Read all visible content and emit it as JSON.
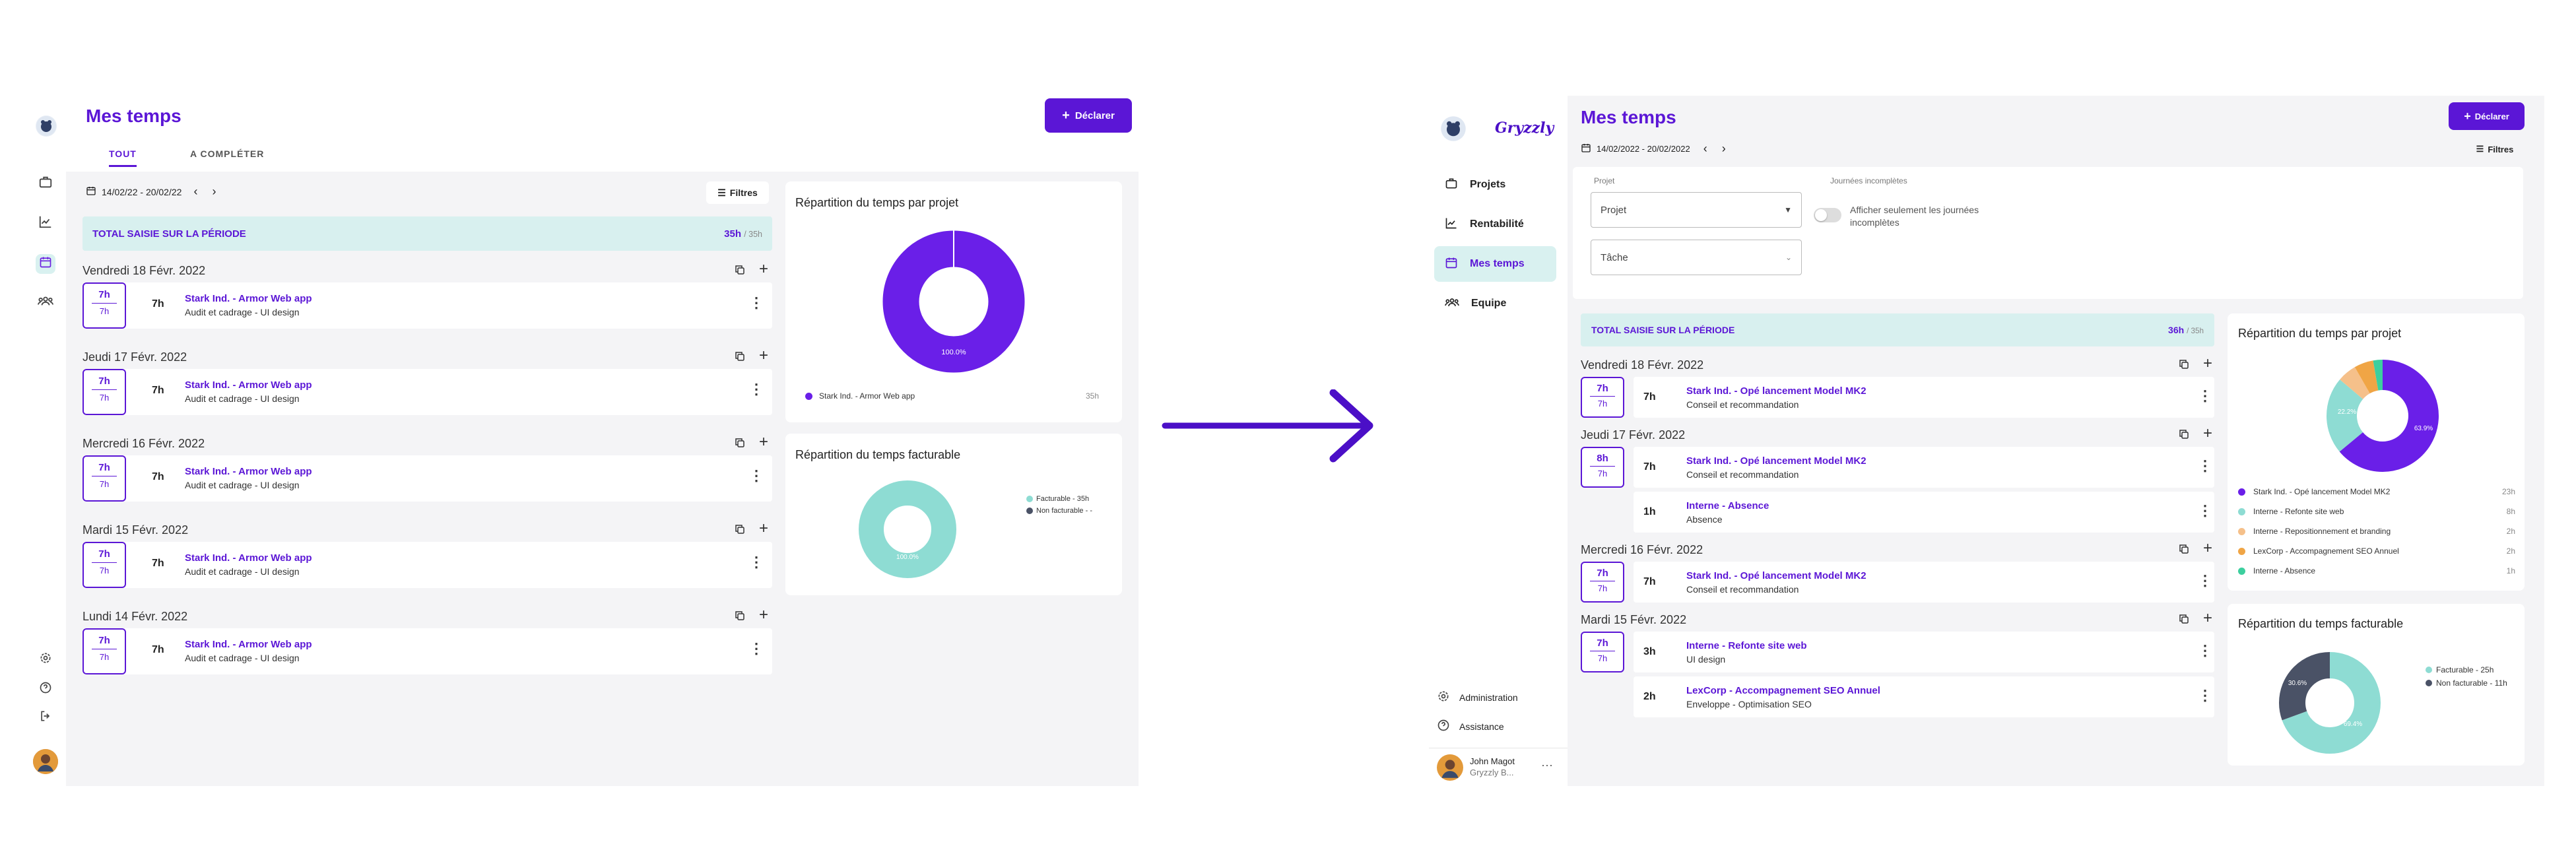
{
  "left": {
    "title": "Mes temps",
    "declare_label": "Déclarer",
    "tabs": [
      "TOUT",
      "A COMPLÉTER"
    ],
    "date_range": "14/02/22 - 20/02/22",
    "filters_label": "Filtres",
    "total_label": "TOTAL SAISIE SUR LA PÉRIODE",
    "total_value": "35h",
    "total_max": "/ 35h",
    "days": [
      {
        "label": "Vendredi 18 Févr. 2022",
        "box_top": "7h",
        "box_bot": "7h",
        "dur": "7h",
        "project": "Stark Ind. - Armor Web app",
        "task": "Audit et cadrage - UI design"
      },
      {
        "label": "Jeudi 17 Févr. 2022",
        "box_top": "7h",
        "box_bot": "7h",
        "dur": "7h",
        "project": "Stark Ind. - Armor Web app",
        "task": "Audit et cadrage - UI design"
      },
      {
        "label": "Mercredi 16 Févr. 2022",
        "box_top": "7h",
        "box_bot": "7h",
        "dur": "7h",
        "project": "Stark Ind. - Armor Web app",
        "task": "Audit et cadrage - UI design"
      },
      {
        "label": "Mardi 15 Févr. 2022",
        "box_top": "7h",
        "box_bot": "7h",
        "dur": "7h",
        "project": "Stark Ind. - Armor Web app",
        "task": "Audit et cadrage - UI design"
      },
      {
        "label": "Lundi 14 Févr. 2022",
        "box_top": "7h",
        "box_bot": "7h",
        "dur": "7h",
        "project": "Stark Ind. - Armor Web app",
        "task": "Audit et cadrage - UI design"
      }
    ],
    "chart_project": {
      "title": "Répartition du temps par projet",
      "slice_label": "100.0%",
      "legend": [
        {
          "name": "Stark Ind. - Armor Web app",
          "value": "35h",
          "color": "#6a1fe8"
        }
      ]
    },
    "chart_billable": {
      "title": "Répartition du temps facturable",
      "slice_label": "100.0%",
      "legend": [
        {
          "name": "Facturable - 35h",
          "color": "#8edcd3"
        },
        {
          "name": "Non facturable - -",
          "color": "#4a5266"
        }
      ]
    }
  },
  "right": {
    "brand": "Gryzzly",
    "title": "Mes temps",
    "declare_label": "Déclarer",
    "date_range": "14/02/2022 - 20/02/2022",
    "filters_label": "Filtres",
    "nav": [
      "Projets",
      "Rentabilité",
      "Mes temps",
      "Equipe"
    ],
    "bottom_nav": [
      "Administration",
      "Assistance"
    ],
    "user_name": "John Magot",
    "user_org": "Gryzzly B...",
    "filter_projet_label": "Projet",
    "filter_projet_value": "Projet",
    "filter_tache_value": "Tâche",
    "filter_incomplete_label": "Journées incomplètes",
    "toggle_text_1": "Afficher seulement les journées",
    "toggle_text_2": "incomplètes",
    "total_label": "TOTAL SAISIE SUR LA PÉRIODE",
    "total_value": "36h",
    "total_max": "/ 35h",
    "days": [
      {
        "label": "Vendredi 18 Févr. 2022",
        "box_top": "7h",
        "box_bot": "7h",
        "entries": [
          {
            "dur": "7h",
            "project": "Stark Ind. - Opé lancement Model MK2",
            "task": "Conseil et recommandation"
          }
        ]
      },
      {
        "label": "Jeudi 17 Févr. 2022",
        "box_top": "8h",
        "box_bot": "7h",
        "entries": [
          {
            "dur": "7h",
            "project": "Stark Ind. - Opé lancement Model MK2",
            "task": "Conseil et recommandation"
          },
          {
            "dur": "1h",
            "project": "Interne - Absence",
            "task": "Absence"
          }
        ]
      },
      {
        "label": "Mercredi 16 Févr. 2022",
        "box_top": "7h",
        "box_bot": "7h",
        "entries": [
          {
            "dur": "7h",
            "project": "Stark Ind. - Opé lancement Model MK2",
            "task": "Conseil et recommandation"
          }
        ]
      },
      {
        "label": "Mardi 15 Févr. 2022",
        "box_top": "7h",
        "box_bot": "7h",
        "entries": [
          {
            "dur": "3h",
            "project": "Interne - Refonte site web",
            "task": "UI design"
          },
          {
            "dur": "2h",
            "project": "LexCorp - Accompagnement SEO Annuel",
            "task": "Enveloppe - Optimisation SEO"
          }
        ]
      }
    ],
    "chart_project": {
      "title": "Répartition du temps par projet",
      "big_label": "63.9%",
      "small_label": "22.2%",
      "legend": [
        {
          "name": "Stark Ind. - Opé lancement Model MK2",
          "value": "23h",
          "color": "#6a1fe8"
        },
        {
          "name": "Interne - Refonte site web",
          "value": "8h",
          "color": "#8edcd3"
        },
        {
          "name": "Interne - Repositionnement et branding",
          "value": "2h",
          "color": "#f5c08a"
        },
        {
          "name": "LexCorp - Accompagnement SEO Annuel",
          "value": "2h",
          "color": "#f0a545"
        },
        {
          "name": "Interne - Absence",
          "value": "1h",
          "color": "#3ccf9e"
        }
      ]
    },
    "chart_billable": {
      "title": "Répartition du temps facturable",
      "big_label": "69.4%",
      "small_label": "30.6%",
      "legend": [
        {
          "name": "Facturable - 25h",
          "color": "#8edcd3"
        },
        {
          "name": "Non facturable - 11h",
          "color": "#4a5266"
        }
      ]
    }
  },
  "colors": {
    "accent": "#5b16d6",
    "teal_bg": "#d8f0ef",
    "teal": "#8edcd3",
    "dark_slate": "#4a5266"
  }
}
